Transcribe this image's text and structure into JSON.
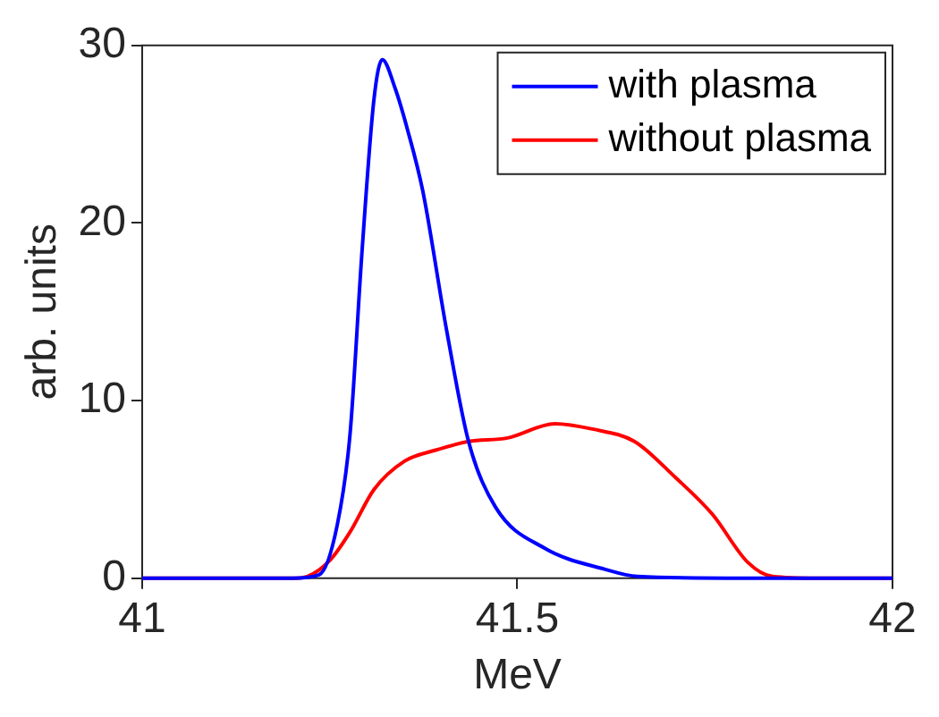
{
  "chart_data": {
    "type": "line",
    "xlabel": "MeV",
    "ylabel": "arb. units",
    "xlim": [
      41,
      42
    ],
    "xticks": [
      41,
      41.5,
      42
    ],
    "ylim": [
      0,
      30
    ],
    "yticks": [
      0,
      10,
      20,
      30
    ],
    "grid": false,
    "legend": "top right",
    "marker": "none",
    "line_style": "solid",
    "series": [
      {
        "name": "with plasma",
        "color": "#0000ff",
        "x": [
          41,
          41.2,
          41.236,
          41.26,
          41.277,
          41.293,
          41.309,
          41.32,
          41.337,
          41.354,
          41.374,
          41.406,
          41.435,
          41.471,
          41.536,
          41.617,
          41.66,
          41.8,
          42
        ],
        "values": [
          0,
          0,
          0.2,
          3,
          8.1,
          18.4,
          27,
          29.2,
          27.6,
          25.2,
          21.8,
          13.9,
          7.7,
          4,
          1.7,
          0.5,
          0.1,
          0,
          0
        ]
      },
      {
        "name": "without plasma",
        "color": "#ff0000",
        "x": [
          41,
          41.2,
          41.22,
          41.25,
          41.277,
          41.309,
          41.35,
          41.39,
          41.435,
          41.487,
          41.55,
          41.6,
          41.656,
          41.71,
          41.76,
          41.807,
          41.84,
          41.9,
          42
        ],
        "values": [
          0,
          0,
          0.1,
          1,
          2.6,
          5,
          6.6,
          7.2,
          7.7,
          7.9,
          8.7,
          8.4,
          7.7,
          5.7,
          3.6,
          0.9,
          0.1,
          0,
          0
        ]
      }
    ]
  }
}
